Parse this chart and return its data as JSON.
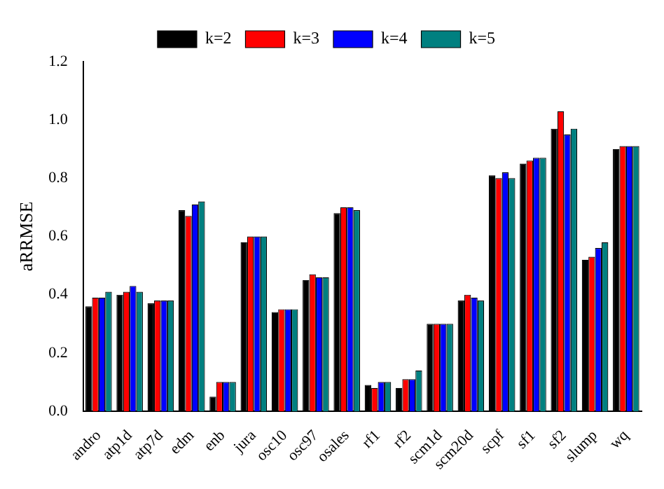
{
  "chart_data": {
    "type": "bar",
    "ylabel": "aRRMSE",
    "categories": [
      "andro",
      "atp1d",
      "atp7d",
      "edm",
      "enb",
      "jura",
      "osc10",
      "osc97",
      "osales",
      "rf1",
      "rf2",
      "scm1d",
      "scm20d",
      "scpf",
      "sf1",
      "sf2",
      "slump",
      "wq"
    ],
    "series": [
      {
        "name": "k=2",
        "color": "#000000",
        "values": [
          0.36,
          0.4,
          0.37,
          0.69,
          0.05,
          0.58,
          0.34,
          0.45,
          0.68,
          0.09,
          0.08,
          0.3,
          0.38,
          0.81,
          0.85,
          0.97,
          0.52,
          0.9
        ]
      },
      {
        "name": "k=3",
        "color": "#ff0000",
        "values": [
          0.39,
          0.41,
          0.38,
          0.67,
          0.1,
          0.6,
          0.35,
          0.47,
          0.7,
          0.08,
          0.11,
          0.3,
          0.4,
          0.8,
          0.86,
          1.03,
          0.53,
          0.91
        ]
      },
      {
        "name": "k=4",
        "color": "#0000ff",
        "values": [
          0.39,
          0.43,
          0.38,
          0.71,
          0.1,
          0.6,
          0.35,
          0.46,
          0.7,
          0.1,
          0.11,
          0.3,
          0.39,
          0.82,
          0.87,
          0.95,
          0.56,
          0.91
        ]
      },
      {
        "name": "k=5",
        "color": "#008080",
        "values": [
          0.41,
          0.41,
          0.38,
          0.72,
          0.1,
          0.6,
          0.35,
          0.46,
          0.69,
          0.1,
          0.14,
          0.3,
          0.38,
          0.8,
          0.87,
          0.97,
          0.58,
          0.91
        ]
      }
    ],
    "ylim": [
      0,
      1.2
    ],
    "yticks": [
      {
        "value": 0,
        "label": "0.0"
      },
      {
        "value": 0.2,
        "label": "0.2"
      },
      {
        "value": 0.4,
        "label": "0.4"
      },
      {
        "value": 0.6,
        "label": "0.6"
      },
      {
        "value": 0.8,
        "label": "0.8"
      },
      {
        "value": 1.0,
        "label": "1.0"
      },
      {
        "value": 1.2,
        "label": "1.2"
      }
    ],
    "grid": false,
    "legend": "top"
  }
}
